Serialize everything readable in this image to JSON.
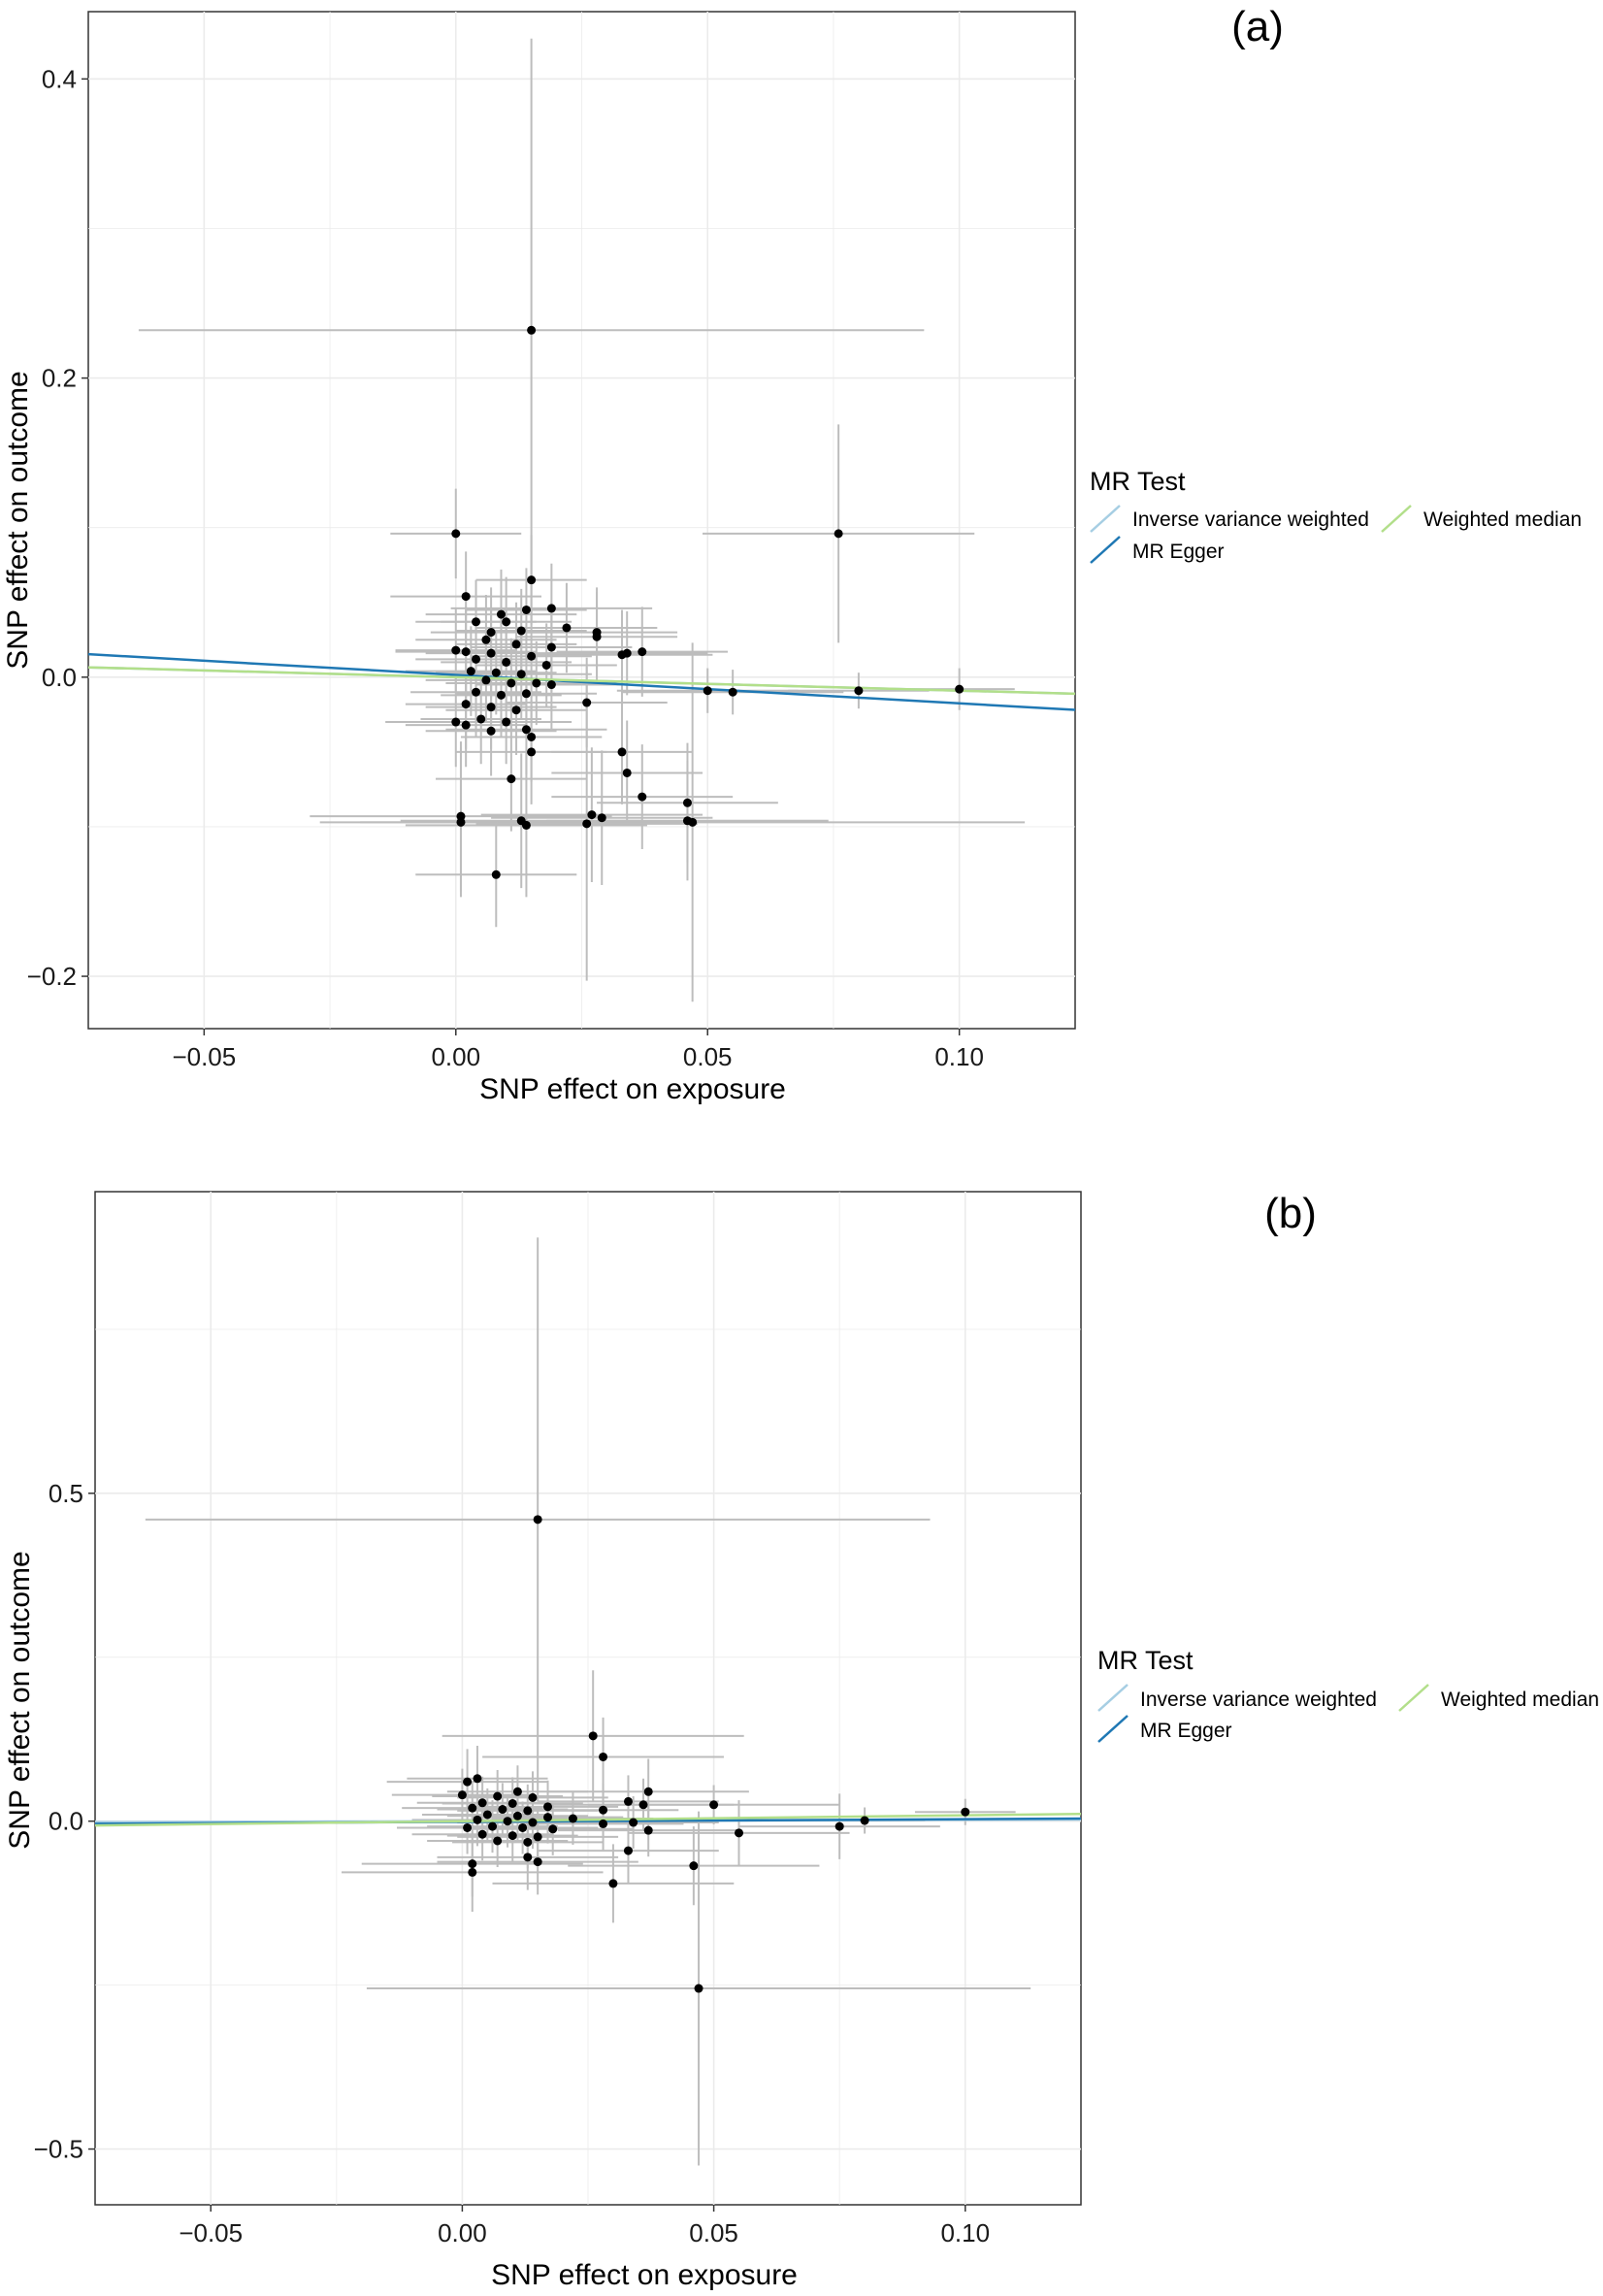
{
  "chart_data": [
    {
      "type": "scatter",
      "panel_label": "(a)",
      "xlabel": "SNP effect on exposure",
      "ylabel": "SNP effect on outcome",
      "xlim": [
        -0.073,
        0.123
      ],
      "ylim": [
        -0.235,
        0.445
      ],
      "x_ticks": [
        -0.05,
        0.0,
        0.05,
        0.1
      ],
      "x_tick_labels": [
        "−0.05",
        "0.00",
        "0.05",
        "0.10"
      ],
      "y_ticks": [
        -0.2,
        0.0,
        0.2,
        0.4
      ],
      "y_tick_labels": [
        "−0.2",
        "0.0",
        "0.2",
        "0.4"
      ],
      "grid": true,
      "legend": {
        "title": "MR Test",
        "position": "right",
        "entries": [
          {
            "label": "Inverse variance weighted",
            "color": "#a6cee3"
          },
          {
            "label": "MR Egger",
            "color": "#1f78b4"
          },
          {
            "label": "Weighted median",
            "color": "#b2df8a"
          }
        ]
      },
      "lines": [
        {
          "name": "Inverse variance weighted",
          "color": "#a6cee3",
          "intercept": 0.0,
          "slope": -0.09
        },
        {
          "name": "MR Egger",
          "color": "#1f78b4",
          "intercept": 0.0015,
          "slope": -0.19
        },
        {
          "name": "Weighted median",
          "color": "#b2df8a",
          "intercept": 0.0,
          "slope": -0.09
        }
      ],
      "points": [
        {
          "x": 0.015,
          "y": 0.232,
          "xerr": 0.078,
          "yerr": 0.195
        },
        {
          "x": 0.076,
          "y": 0.096,
          "xerr": 0.027,
          "yerr": 0.073
        },
        {
          "x": 0.0,
          "y": 0.096,
          "xerr": 0.013,
          "yerr": 0.03
        },
        {
          "x": 0.015,
          "y": 0.065,
          "xerr": 0.011,
          "yerr": 0.03
        },
        {
          "x": 0.002,
          "y": 0.054,
          "xerr": 0.015,
          "yerr": 0.03
        },
        {
          "x": 0.009,
          "y": 0.042,
          "xerr": 0.015,
          "yerr": 0.03
        },
        {
          "x": 0.014,
          "y": 0.045,
          "xerr": 0.012,
          "yerr": 0.028
        },
        {
          "x": 0.019,
          "y": 0.046,
          "xerr": 0.02,
          "yerr": 0.03
        },
        {
          "x": 0.004,
          "y": 0.037,
          "xerr": 0.012,
          "yerr": 0.028
        },
        {
          "x": 0.01,
          "y": 0.037,
          "xerr": 0.013,
          "yerr": 0.03
        },
        {
          "x": 0.007,
          "y": 0.03,
          "xerr": 0.012,
          "yerr": 0.03
        },
        {
          "x": 0.013,
          "y": 0.031,
          "xerr": 0.013,
          "yerr": 0.028
        },
        {
          "x": 0.022,
          "y": 0.033,
          "xerr": 0.018,
          "yerr": 0.03
        },
        {
          "x": 0.028,
          "y": 0.03,
          "xerr": 0.016,
          "yerr": 0.03
        },
        {
          "x": 0.028,
          "y": 0.027,
          "xerr": 0.016,
          "yerr": 0.03
        },
        {
          "x": 0.006,
          "y": 0.025,
          "xerr": 0.014,
          "yerr": 0.03
        },
        {
          "x": 0.012,
          "y": 0.022,
          "xerr": 0.012,
          "yerr": 0.028
        },
        {
          "x": 0.019,
          "y": 0.02,
          "xerr": 0.016,
          "yerr": 0.03
        },
        {
          "x": 0.0,
          "y": 0.018,
          "xerr": 0.012,
          "yerr": 0.028
        },
        {
          "x": 0.002,
          "y": 0.017,
          "xerr": 0.014,
          "yerr": 0.03
        },
        {
          "x": 0.007,
          "y": 0.016,
          "xerr": 0.013,
          "yerr": 0.03
        },
        {
          "x": 0.015,
          "y": 0.014,
          "xerr": 0.012,
          "yerr": 0.028
        },
        {
          "x": 0.033,
          "y": 0.015,
          "xerr": 0.018,
          "yerr": 0.03
        },
        {
          "x": 0.037,
          "y": 0.017,
          "xerr": 0.017,
          "yerr": 0.03
        },
        {
          "x": 0.034,
          "y": 0.016,
          "xerr": 0.016,
          "yerr": 0.028
        },
        {
          "x": 0.004,
          "y": 0.012,
          "xerr": 0.012,
          "yerr": 0.028
        },
        {
          "x": 0.01,
          "y": 0.01,
          "xerr": 0.013,
          "yerr": 0.03
        },
        {
          "x": 0.018,
          "y": 0.008,
          "xerr": 0.014,
          "yerr": 0.028
        },
        {
          "x": 0.003,
          "y": 0.004,
          "xerr": 0.013,
          "yerr": 0.03
        },
        {
          "x": 0.008,
          "y": 0.003,
          "xerr": 0.012,
          "yerr": 0.028
        },
        {
          "x": 0.013,
          "y": 0.002,
          "xerr": 0.014,
          "yerr": 0.03
        },
        {
          "x": 0.006,
          "y": -0.002,
          "xerr": 0.012,
          "yerr": 0.028
        },
        {
          "x": 0.011,
          "y": -0.004,
          "xerr": 0.013,
          "yerr": 0.03
        },
        {
          "x": 0.016,
          "y": -0.004,
          "xerr": 0.014,
          "yerr": 0.028
        },
        {
          "x": 0.019,
          "y": -0.005,
          "xerr": 0.015,
          "yerr": 0.03
        },
        {
          "x": 0.05,
          "y": -0.009,
          "xerr": 0.018,
          "yerr": 0.015
        },
        {
          "x": 0.055,
          "y": -0.01,
          "xerr": 0.022,
          "yerr": 0.015
        },
        {
          "x": 0.08,
          "y": -0.009,
          "xerr": 0.014,
          "yerr": 0.012
        },
        {
          "x": 0.1,
          "y": -0.008,
          "xerr": 0.011,
          "yerr": 0.014
        },
        {
          "x": 0.004,
          "y": -0.01,
          "xerr": 0.013,
          "yerr": 0.03
        },
        {
          "x": 0.009,
          "y": -0.012,
          "xerr": 0.012,
          "yerr": 0.028
        },
        {
          "x": 0.014,
          "y": -0.011,
          "xerr": 0.014,
          "yerr": 0.03
        },
        {
          "x": 0.026,
          "y": -0.017,
          "xerr": 0.016,
          "yerr": 0.03
        },
        {
          "x": 0.002,
          "y": -0.018,
          "xerr": 0.012,
          "yerr": 0.03
        },
        {
          "x": 0.007,
          "y": -0.02,
          "xerr": 0.013,
          "yerr": 0.028
        },
        {
          "x": 0.012,
          "y": -0.022,
          "xerr": 0.014,
          "yerr": 0.03
        },
        {
          "x": 0.005,
          "y": -0.028,
          "xerr": 0.012,
          "yerr": 0.03
        },
        {
          "x": 0.01,
          "y": -0.03,
          "xerr": 0.013,
          "yerr": 0.028
        },
        {
          "x": 0.0,
          "y": -0.03,
          "xerr": 0.014,
          "yerr": 0.03
        },
        {
          "x": 0.002,
          "y": -0.032,
          "xerr": 0.012,
          "yerr": 0.028
        },
        {
          "x": 0.014,
          "y": -0.035,
          "xerr": 0.016,
          "yerr": 0.03
        },
        {
          "x": 0.007,
          "y": -0.036,
          "xerr": 0.013,
          "yerr": 0.03
        },
        {
          "x": 0.015,
          "y": -0.04,
          "xerr": 0.014,
          "yerr": 0.03
        },
        {
          "x": 0.015,
          "y": -0.05,
          "xerr": 0.015,
          "yerr": 0.035
        },
        {
          "x": 0.033,
          "y": -0.05,
          "xerr": 0.014,
          "yerr": 0.035
        },
        {
          "x": 0.034,
          "y": -0.064,
          "xerr": 0.015,
          "yerr": 0.035
        },
        {
          "x": 0.011,
          "y": -0.068,
          "xerr": 0.015,
          "yerr": 0.035
        },
        {
          "x": 0.037,
          "y": -0.08,
          "xerr": 0.018,
          "yerr": 0.035
        },
        {
          "x": 0.046,
          "y": -0.084,
          "xerr": 0.018,
          "yerr": 0.04
        },
        {
          "x": 0.001,
          "y": -0.093,
          "xerr": 0.03,
          "yerr": 0.05
        },
        {
          "x": 0.027,
          "y": -0.092,
          "xerr": 0.022,
          "yerr": 0.045
        },
        {
          "x": 0.029,
          "y": -0.094,
          "xerr": 0.022,
          "yerr": 0.045
        },
        {
          "x": 0.013,
          "y": -0.096,
          "xerr": 0.024,
          "yerr": 0.045
        },
        {
          "x": 0.001,
          "y": -0.097,
          "xerr": 0.028,
          "yerr": 0.05
        },
        {
          "x": 0.014,
          "y": -0.099,
          "xerr": 0.024,
          "yerr": 0.048
        },
        {
          "x": 0.046,
          "y": -0.096,
          "xerr": 0.028,
          "yerr": 0.04
        },
        {
          "x": 0.047,
          "y": -0.097,
          "xerr": 0.066,
          "yerr": 0.12
        },
        {
          "x": 0.026,
          "y": -0.098,
          "xerr": 0.022,
          "yerr": 0.105
        },
        {
          "x": 0.008,
          "y": -0.132,
          "xerr": 0.016,
          "yerr": 0.035
        }
      ]
    },
    {
      "type": "scatter",
      "panel_label": "(b)",
      "xlabel": "SNP effect on exposure",
      "ylabel": "SNP effect on outcome",
      "xlim": [
        -0.073,
        0.123
      ],
      "ylim": [
        -0.585,
        0.96
      ],
      "x_ticks": [
        -0.05,
        0.0,
        0.05,
        0.1
      ],
      "x_tick_labels": [
        "−0.05",
        "0.00",
        "0.05",
        "0.10"
      ],
      "y_ticks": [
        -0.5,
        0.0,
        0.5
      ],
      "y_tick_labels": [
        "−0.5",
        "0.0",
        "0.5"
      ],
      "grid": true,
      "legend": {
        "title": "MR Test",
        "position": "right",
        "entries": [
          {
            "label": "Inverse variance weighted",
            "color": "#a6cee3"
          },
          {
            "label": "MR Egger",
            "color": "#1f78b4"
          },
          {
            "label": "Weighted median",
            "color": "#b2df8a"
          }
        ]
      },
      "lines": [
        {
          "name": "Inverse variance weighted",
          "color": "#a6cee3",
          "intercept": 0.0,
          "slope": 0.02
        },
        {
          "name": "MR Egger",
          "color": "#1f78b4",
          "intercept": -0.001,
          "slope": 0.04
        },
        {
          "name": "Weighted median",
          "color": "#b2df8a",
          "intercept": 0.0,
          "slope": 0.09
        }
      ],
      "points": [
        {
          "x": 0.015,
          "y": 0.46,
          "xerr": 0.078,
          "yerr": 0.43
        },
        {
          "x": 0.026,
          "y": 0.13,
          "xerr": 0.03,
          "yerr": 0.1
        },
        {
          "x": 0.028,
          "y": 0.098,
          "xerr": 0.024,
          "yerr": 0.06
        },
        {
          "x": 0.001,
          "y": 0.06,
          "xerr": 0.016,
          "yerr": 0.05
        },
        {
          "x": 0.003,
          "y": 0.065,
          "xerr": 0.014,
          "yerr": 0.05
        },
        {
          "x": 0.011,
          "y": 0.045,
          "xerr": 0.014,
          "yerr": 0.04
        },
        {
          "x": 0.037,
          "y": 0.045,
          "xerr": 0.02,
          "yerr": 0.05
        },
        {
          "x": 0.0,
          "y": 0.04,
          "xerr": 0.014,
          "yerr": 0.04
        },
        {
          "x": 0.007,
          "y": 0.038,
          "xerr": 0.013,
          "yerr": 0.04
        },
        {
          "x": 0.014,
          "y": 0.036,
          "xerr": 0.015,
          "yerr": 0.04
        },
        {
          "x": 0.033,
          "y": 0.03,
          "xerr": 0.018,
          "yerr": 0.04
        },
        {
          "x": 0.004,
          "y": 0.028,
          "xerr": 0.013,
          "yerr": 0.04
        },
        {
          "x": 0.01,
          "y": 0.027,
          "xerr": 0.014,
          "yerr": 0.04
        },
        {
          "x": 0.05,
          "y": 0.025,
          "xerr": 0.025,
          "yerr": 0.03
        },
        {
          "x": 0.017,
          "y": 0.022,
          "xerr": 0.014,
          "yerr": 0.04
        },
        {
          "x": 0.036,
          "y": 0.025,
          "xerr": 0.018,
          "yerr": 0.04
        },
        {
          "x": 0.002,
          "y": 0.02,
          "xerr": 0.014,
          "yerr": 0.04
        },
        {
          "x": 0.008,
          "y": 0.018,
          "xerr": 0.013,
          "yerr": 0.04
        },
        {
          "x": 0.013,
          "y": 0.016,
          "xerr": 0.014,
          "yerr": 0.04
        },
        {
          "x": 0.028,
          "y": 0.017,
          "xerr": 0.015,
          "yerr": 0.04
        },
        {
          "x": 0.005,
          "y": 0.01,
          "xerr": 0.013,
          "yerr": 0.04
        },
        {
          "x": 0.011,
          "y": 0.008,
          "xerr": 0.014,
          "yerr": 0.04
        },
        {
          "x": 0.1,
          "y": 0.014,
          "xerr": 0.01,
          "yerr": 0.02
        },
        {
          "x": 0.017,
          "y": 0.006,
          "xerr": 0.015,
          "yerr": 0.04
        },
        {
          "x": 0.022,
          "y": 0.004,
          "xerr": 0.016,
          "yerr": 0.04
        },
        {
          "x": 0.003,
          "y": 0.002,
          "xerr": 0.013,
          "yerr": 0.04
        },
        {
          "x": 0.009,
          "y": 0.0,
          "xerr": 0.014,
          "yerr": 0.04
        },
        {
          "x": 0.08,
          "y": 0.001,
          "xerr": 0.012,
          "yerr": 0.02
        },
        {
          "x": 0.014,
          "y": -0.002,
          "xerr": 0.015,
          "yerr": 0.04
        },
        {
          "x": 0.028,
          "y": -0.004,
          "xerr": 0.016,
          "yerr": 0.04
        },
        {
          "x": 0.034,
          "y": -0.002,
          "xerr": 0.017,
          "yerr": 0.04
        },
        {
          "x": 0.075,
          "y": -0.008,
          "xerr": 0.02,
          "yerr": 0.05
        },
        {
          "x": 0.001,
          "y": -0.01,
          "xerr": 0.014,
          "yerr": 0.04
        },
        {
          "x": 0.006,
          "y": -0.008,
          "xerr": 0.013,
          "yerr": 0.04
        },
        {
          "x": 0.012,
          "y": -0.01,
          "xerr": 0.015,
          "yerr": 0.04
        },
        {
          "x": 0.018,
          "y": -0.012,
          "xerr": 0.016,
          "yerr": 0.04
        },
        {
          "x": 0.037,
          "y": -0.014,
          "xerr": 0.018,
          "yerr": 0.04
        },
        {
          "x": 0.055,
          "y": -0.018,
          "xerr": 0.022,
          "yerr": 0.05
        },
        {
          "x": 0.004,
          "y": -0.02,
          "xerr": 0.014,
          "yerr": 0.04
        },
        {
          "x": 0.01,
          "y": -0.022,
          "xerr": 0.013,
          "yerr": 0.04
        },
        {
          "x": 0.015,
          "y": -0.024,
          "xerr": 0.016,
          "yerr": 0.04
        },
        {
          "x": 0.007,
          "y": -0.03,
          "xerr": 0.014,
          "yerr": 0.04
        },
        {
          "x": 0.013,
          "y": -0.032,
          "xerr": 0.015,
          "yerr": 0.04
        },
        {
          "x": 0.033,
          "y": -0.045,
          "xerr": 0.018,
          "yerr": 0.05
        },
        {
          "x": 0.013,
          "y": -0.055,
          "xerr": 0.018,
          "yerr": 0.05
        },
        {
          "x": 0.015,
          "y": -0.062,
          "xerr": 0.02,
          "yerr": 0.05
        },
        {
          "x": 0.002,
          "y": -0.065,
          "xerr": 0.022,
          "yerr": 0.05
        },
        {
          "x": 0.046,
          "y": -0.068,
          "xerr": 0.025,
          "yerr": 0.06
        },
        {
          "x": 0.002,
          "y": -0.078,
          "xerr": 0.026,
          "yerr": 0.06
        },
        {
          "x": 0.03,
          "y": -0.095,
          "xerr": 0.024,
          "yerr": 0.06
        },
        {
          "x": 0.047,
          "y": -0.255,
          "xerr": 0.066,
          "yerr": 0.27
        }
      ]
    }
  ]
}
